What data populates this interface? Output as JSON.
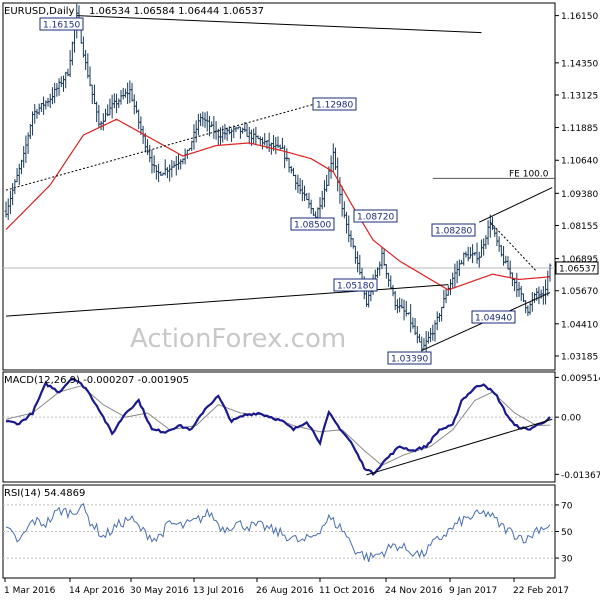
{
  "chart_data": [
    {
      "type": "candlestick",
      "title": "EURUSD,Daily",
      "ohlc_readout": [
        "1.06534",
        "1.06584",
        "1.06444",
        "1.06537"
      ],
      "watermark": "ActionForex.com",
      "ylim": [
        1.0265,
        1.1663
      ],
      "y_ticks": [
        "1.16150",
        "1.14350",
        "1.13125",
        "1.11885",
        "1.10640",
        "1.09380",
        "1.08155",
        "1.06895",
        "1.05670",
        "1.04410",
        "1.03185"
      ],
      "current_price": {
        "label": "1.06537",
        "value": 1.06537
      },
      "x_ticks": [
        "1 Mar 2016",
        "14 Apr 2016",
        "30 May 2016",
        "13 Jul 2016",
        "26 Aug 2016",
        "11 Oct 2016",
        "24 Nov 2016",
        "9 Jan 2017",
        "22 Feb 2017"
      ],
      "price_key_points": [
        [
          0,
          1.087
        ],
        [
          8,
          1.108
        ],
        [
          12,
          1.124
        ],
        [
          20,
          1.13
        ],
        [
          28,
          1.14
        ],
        [
          32,
          1.1615
        ],
        [
          36,
          1.143
        ],
        [
          42,
          1.12
        ],
        [
          48,
          1.127
        ],
        [
          56,
          1.133
        ],
        [
          62,
          1.115
        ],
        [
          68,
          1.101
        ],
        [
          75,
          1.104
        ],
        [
          82,
          1.109
        ],
        [
          88,
          1.123
        ],
        [
          96,
          1.116
        ],
        [
          105,
          1.118
        ],
        [
          115,
          1.114
        ],
        [
          125,
          1.11
        ],
        [
          133,
          1.095
        ],
        [
          140,
          1.085
        ],
        [
          145,
          1.098
        ],
        [
          148,
          1.11
        ],
        [
          152,
          1.0872
        ],
        [
          158,
          1.07
        ],
        [
          163,
          1.0518
        ],
        [
          170,
          1.07
        ],
        [
          176,
          1.052
        ],
        [
          182,
          1.047
        ],
        [
          188,
          1.0339
        ],
        [
          194,
          1.043
        ],
        [
          200,
          1.058
        ],
        [
          207,
          1.07
        ],
        [
          214,
          1.07
        ],
        [
          219,
          1.0828
        ],
        [
          224,
          1.07
        ],
        [
          230,
          1.06
        ],
        [
          236,
          1.0494
        ],
        [
          240,
          1.056
        ],
        [
          243,
          1.054
        ],
        [
          246,
          1.0654
        ]
      ],
      "ma_key_points": [
        [
          0,
          1.08
        ],
        [
          20,
          1.097
        ],
        [
          35,
          1.116
        ],
        [
          50,
          1.122
        ],
        [
          65,
          1.115
        ],
        [
          80,
          1.108
        ],
        [
          95,
          1.112
        ],
        [
          110,
          1.113
        ],
        [
          125,
          1.11
        ],
        [
          138,
          1.107
        ],
        [
          148,
          1.102
        ],
        [
          156,
          1.09
        ],
        [
          166,
          1.076
        ],
        [
          178,
          1.068
        ],
        [
          190,
          1.062
        ],
        [
          200,
          1.057
        ],
        [
          210,
          1.06
        ],
        [
          220,
          1.063
        ],
        [
          232,
          1.061
        ],
        [
          246,
          1.062
        ]
      ],
      "level_labels": [
        {
          "text": "1.16150",
          "value": 1.1615
        },
        {
          "text": "1.12980",
          "value": 1.1298
        },
        {
          "text": "1.08500",
          "value": 1.085
        },
        {
          "text": "1.08720",
          "value": 1.0872
        },
        {
          "text": "1.08280",
          "value": 1.0828
        },
        {
          "text": "1.05180",
          "value": 1.0518
        },
        {
          "text": "1.04940",
          "value": 1.0494
        },
        {
          "text": "1.03390",
          "value": 1.0339
        }
      ],
      "fib_label": "FE 100.0",
      "colors": {
        "price": "#1a3a5a",
        "ma": "#dd2020",
        "level_box": "#1a2b7a",
        "axis": "#000000"
      }
    },
    {
      "type": "line",
      "title": "MACD(12,26,9) -0.000207 -0.001905",
      "ylim": [
        -0.0155,
        0.0108
      ],
      "y_ticks": [
        "0.009514",
        "0.00",
        "-0.013671"
      ],
      "macd_key_points": [
        [
          0,
          -0.001
        ],
        [
          6,
          -0.0015
        ],
        [
          12,
          0.001
        ],
        [
          18,
          0.008
        ],
        [
          24,
          0.006
        ],
        [
          30,
          0.0095
        ],
        [
          36,
          0.007
        ],
        [
          42,
          0.002
        ],
        [
          48,
          -0.004
        ],
        [
          54,
          0.001
        ],
        [
          60,
          0.004
        ],
        [
          66,
          -0.003
        ],
        [
          72,
          -0.0035
        ],
        [
          78,
          -0.002
        ],
        [
          84,
          -0.003
        ],
        [
          90,
          0.002
        ],
        [
          96,
          0.005
        ],
        [
          102,
          -0.001
        ],
        [
          108,
          0.0005
        ],
        [
          114,
          0.001
        ],
        [
          120,
          0.0
        ],
        [
          125,
          -0.001
        ],
        [
          130,
          -0.003
        ],
        [
          136,
          -0.001
        ],
        [
          142,
          -0.006
        ],
        [
          146,
          0.001
        ],
        [
          150,
          -0.002
        ],
        [
          156,
          -0.006
        ],
        [
          162,
          -0.012
        ],
        [
          166,
          -0.0135
        ],
        [
          172,
          -0.01
        ],
        [
          178,
          -0.007
        ],
        [
          184,
          -0.008
        ],
        [
          190,
          -0.007
        ],
        [
          196,
          -0.003
        ],
        [
          202,
          -0.002
        ],
        [
          206,
          0.004
        ],
        [
          212,
          0.007
        ],
        [
          216,
          0.008
        ],
        [
          222,
          0.005
        ],
        [
          226,
          0.001
        ],
        [
          230,
          -0.002
        ],
        [
          236,
          -0.003
        ],
        [
          240,
          -0.002
        ],
        [
          246,
          -0.0002
        ]
      ],
      "signal_key_points": [
        [
          0,
          -0.0005
        ],
        [
          12,
          0.001
        ],
        [
          24,
          0.006
        ],
        [
          34,
          0.0075
        ],
        [
          44,
          0.003
        ],
        [
          54,
          0.0
        ],
        [
          64,
          0.001
        ],
        [
          74,
          -0.003
        ],
        [
          86,
          -0.002
        ],
        [
          96,
          0.003
        ],
        [
          106,
          0.001
        ],
        [
          118,
          0.0005
        ],
        [
          130,
          -0.002
        ],
        [
          142,
          -0.0035
        ],
        [
          152,
          -0.003
        ],
        [
          162,
          -0.008
        ],
        [
          170,
          -0.0115
        ],
        [
          180,
          -0.009
        ],
        [
          192,
          -0.007
        ],
        [
          202,
          -0.003
        ],
        [
          212,
          0.004
        ],
        [
          220,
          0.006
        ],
        [
          230,
          0.001
        ],
        [
          240,
          -0.002
        ],
        [
          246,
          -0.0019
        ]
      ],
      "colors": {
        "macd": "#1a1a8c",
        "signal": "#8a8a8a"
      }
    },
    {
      "type": "line",
      "title": "RSI(14) 54.4869",
      "ylim": [
        15,
        85
      ],
      "y_ticks": [
        "70",
        "50",
        "30"
      ],
      "rsi_key_points": [
        [
          0,
          52
        ],
        [
          6,
          42
        ],
        [
          12,
          58
        ],
        [
          18,
          56
        ],
        [
          24,
          66
        ],
        [
          30,
          64
        ],
        [
          34,
          70
        ],
        [
          38,
          58
        ],
        [
          44,
          46
        ],
        [
          50,
          54
        ],
        [
          56,
          60
        ],
        [
          62,
          50
        ],
        [
          68,
          44
        ],
        [
          74,
          56
        ],
        [
          80,
          54
        ],
        [
          86,
          58
        ],
        [
          92,
          64
        ],
        [
          98,
          52
        ],
        [
          104,
          56
        ],
        [
          110,
          54
        ],
        [
          116,
          54
        ],
        [
          122,
          50
        ],
        [
          128,
          46
        ],
        [
          134,
          42
        ],
        [
          140,
          48
        ],
        [
          146,
          60
        ],
        [
          152,
          52
        ],
        [
          158,
          36
        ],
        [
          164,
          30
        ],
        [
          170,
          34
        ],
        [
          176,
          40
        ],
        [
          182,
          36
        ],
        [
          188,
          32
        ],
        [
          194,
          42
        ],
        [
          200,
          50
        ],
        [
          206,
          58
        ],
        [
          212,
          62
        ],
        [
          218,
          64
        ],
        [
          224,
          54
        ],
        [
          230,
          48
        ],
        [
          236,
          44
        ],
        [
          240,
          52
        ],
        [
          246,
          54.49
        ]
      ],
      "colors": {
        "rsi": "#4a6fb0"
      }
    }
  ]
}
